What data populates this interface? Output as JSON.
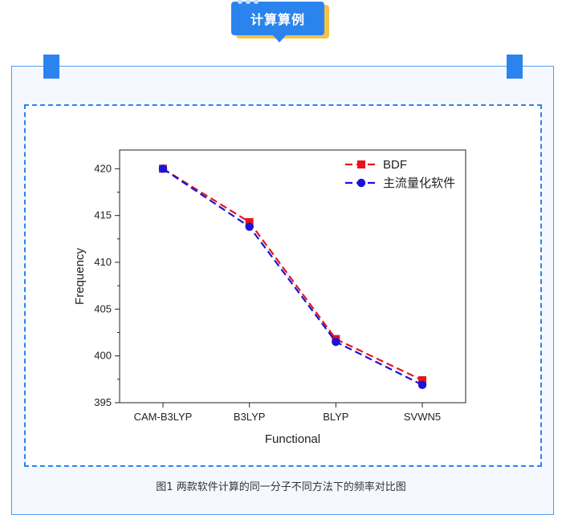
{
  "header": {
    "badge_text": "计算算例"
  },
  "caption": "图1   两款软件计算的同一分子不同方法下的频率对比图",
  "colors": {
    "accent": "#2b84ee",
    "highlight": "#f6c244",
    "series_bdf": "#e8141c",
    "series_main": "#1a14d8"
  },
  "chart_data": {
    "type": "line",
    "categories": [
      "CAM-B3LYP",
      "B3LYP",
      "BLYP",
      "SVWN5"
    ],
    "xlabel": "Functional",
    "ylabel": "Frequency",
    "ylim": [
      395,
      422
    ],
    "yticks": [
      395,
      400,
      405,
      410,
      415,
      420
    ],
    "legend_position": "top-right",
    "series": [
      {
        "name": "BDF",
        "values": [
          420.0,
          414.3,
          401.8,
          397.4
        ],
        "color": "#e8141c",
        "marker": "square"
      },
      {
        "name": "主流量化软件",
        "values": [
          420.0,
          413.8,
          401.5,
          396.9
        ],
        "color": "#1a14d8",
        "marker": "circle"
      }
    ]
  }
}
